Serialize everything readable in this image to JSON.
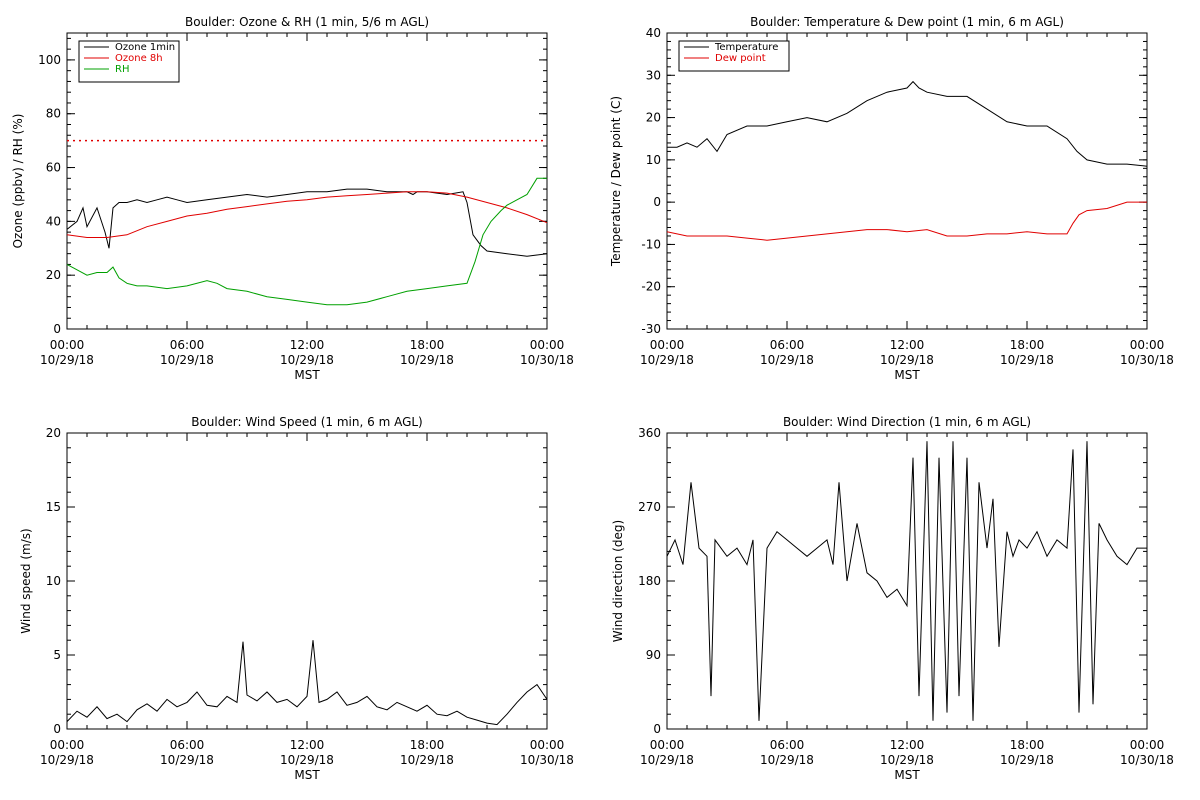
{
  "x_axis": {
    "tick_times": [
      "00:00",
      "06:00",
      "12:00",
      "18:00",
      "00:00"
    ],
    "tick_dates": [
      "10/29/18",
      "10/29/18",
      "10/29/18",
      "10/29/18",
      "10/30/18"
    ],
    "xlabel": "MST",
    "range_hours": [
      0,
      24
    ]
  },
  "chart_data": [
    {
      "type": "line",
      "title": "Boulder: Ozone & RH (1 min, 5/6 m AGL)",
      "xlabel": "MST",
      "ylabel": "Ozone (ppbv) / RH (%)",
      "ylim": [
        0,
        110
      ],
      "yticks": [
        0,
        20,
        40,
        60,
        80,
        100
      ],
      "legend": "top-left",
      "reference_line": {
        "y": 70,
        "color": "#e00000",
        "style": "dotted"
      },
      "series": [
        {
          "name": "Ozone 1min",
          "color": "#000000",
          "x": [
            0,
            0.5,
            0.8,
            1.0,
            1.5,
            1.9,
            2.1,
            2.3,
            2.6,
            3,
            3.5,
            4,
            4.5,
            5,
            5.5,
            6,
            7,
            8,
            9,
            10,
            11,
            12,
            13,
            14,
            15,
            16,
            17,
            17.3,
            17.5,
            18,
            19,
            19.8,
            20.0,
            20.3,
            20.7,
            21,
            22,
            23,
            24
          ],
          "y": [
            37,
            40,
            45,
            38,
            45,
            36,
            30,
            45,
            47,
            47,
            48,
            47,
            48,
            49,
            48,
            47,
            48,
            49,
            50,
            49,
            50,
            51,
            51,
            52,
            52,
            51,
            51,
            50,
            51,
            51,
            50,
            51,
            47,
            35,
            31,
            29,
            28,
            27,
            28
          ]
        },
        {
          "name": "Ozone 8h",
          "color": "#e00000",
          "x": [
            0,
            1,
            2,
            3,
            4,
            5,
            6,
            7,
            8,
            9,
            10,
            11,
            12,
            13,
            14,
            15,
            16,
            17,
            18,
            19,
            20,
            21,
            22,
            23,
            24
          ],
          "y": [
            35,
            34,
            34,
            35,
            38,
            40,
            42,
            43,
            44.5,
            45.5,
            46.5,
            47.5,
            48,
            49,
            49.5,
            50,
            50.5,
            51,
            51,
            50.5,
            49,
            47,
            45,
            42.5,
            39.5
          ]
        },
        {
          "name": "RH",
          "color": "#00a000",
          "x": [
            0,
            0.5,
            1,
            1.5,
            2.0,
            2.3,
            2.6,
            3,
            3.5,
            4,
            5,
            6,
            7,
            7.5,
            8,
            9,
            10,
            11,
            12,
            13,
            14,
            15,
            16,
            17,
            18,
            19,
            20,
            20.4,
            20.8,
            21.2,
            21.7,
            22,
            22.5,
            23,
            23.5,
            24
          ],
          "y": [
            24,
            22,
            20,
            21,
            21,
            23,
            19,
            17,
            16,
            16,
            15,
            16,
            18,
            17,
            15,
            14,
            12,
            11,
            10,
            9,
            9,
            10,
            12,
            14,
            15,
            16,
            17,
            25,
            35,
            40,
            44,
            46,
            48,
            50,
            56,
            56
          ]
        }
      ]
    },
    {
      "type": "line",
      "title": "Boulder: Temperature & Dew point (1 min, 6 m AGL)",
      "xlabel": "MST",
      "ylabel": "Temperature / Dew point (C)",
      "ylim": [
        -30,
        40
      ],
      "yticks": [
        -30,
        -20,
        -10,
        0,
        10,
        20,
        30,
        40
      ],
      "legend": "top-left",
      "series": [
        {
          "name": "Temperature",
          "color": "#000000",
          "x": [
            0,
            0.5,
            1,
            1.5,
            2,
            2.5,
            3,
            4,
            5,
            6,
            7,
            8,
            9,
            10,
            11,
            12,
            12.3,
            12.6,
            13,
            14,
            15,
            16,
            17,
            18,
            19,
            20,
            20.5,
            21,
            22,
            23,
            24
          ],
          "y": [
            13,
            13,
            14,
            13,
            15,
            12,
            16,
            18,
            18,
            19,
            20,
            19,
            21,
            24,
            26,
            27,
            28.5,
            27,
            26,
            25,
            25,
            22,
            19,
            18,
            18,
            15,
            12,
            10,
            9,
            9,
            8.5
          ]
        },
        {
          "name": "Dew point",
          "color": "#e00000",
          "x": [
            0,
            1,
            2,
            3,
            4,
            5,
            6,
            7,
            8,
            9,
            10,
            11,
            12,
            13,
            14,
            15,
            16,
            17,
            18,
            19,
            20,
            20.3,
            20.6,
            21,
            22,
            23,
            24
          ],
          "y": [
            -7,
            -8,
            -8,
            -8,
            -8.5,
            -9,
            -8.5,
            -8,
            -7.5,
            -7,
            -6.5,
            -6.5,
            -7,
            -6.5,
            -8,
            -8,
            -7.5,
            -7.5,
            -7,
            -7.5,
            -7.5,
            -5,
            -3,
            -2,
            -1.5,
            0,
            0
          ]
        }
      ]
    },
    {
      "type": "line",
      "title": "Boulder: Wind Speed (1 min, 6 m AGL)",
      "xlabel": "MST",
      "ylabel": "Wind speed (m/s)",
      "ylim": [
        0,
        20
      ],
      "yticks": [
        0,
        5,
        10,
        15,
        20
      ],
      "series": [
        {
          "color": "#000000",
          "x": [
            0,
            0.5,
            1,
            1.5,
            2,
            2.5,
            3,
            3.5,
            4,
            4.5,
            5,
            5.5,
            6,
            6.5,
            7,
            7.5,
            8,
            8.5,
            8.8,
            9,
            9.5,
            10,
            10.5,
            11,
            11.5,
            12,
            12.3,
            12.6,
            13,
            13.5,
            14,
            14.5,
            15,
            15.5,
            16,
            16.5,
            17,
            17.5,
            18,
            18.5,
            19,
            19.5,
            20,
            20.5,
            21,
            21.5,
            22,
            22.5,
            23,
            23.5,
            24
          ],
          "y": [
            0.5,
            1.2,
            0.8,
            1.5,
            0.7,
            1.0,
            0.5,
            1.3,
            1.7,
            1.2,
            2.0,
            1.5,
            1.8,
            2.5,
            1.6,
            1.5,
            2.2,
            1.8,
            5.9,
            2.3,
            1.9,
            2.5,
            1.8,
            2.0,
            1.5,
            2.2,
            6.0,
            1.8,
            2.0,
            2.5,
            1.6,
            1.8,
            2.2,
            1.5,
            1.3,
            1.8,
            1.5,
            1.2,
            1.6,
            1.0,
            0.9,
            1.2,
            0.8,
            0.6,
            0.4,
            0.3,
            1.0,
            1.8,
            2.5,
            3.0,
            2.0
          ]
        }
      ]
    },
    {
      "type": "line",
      "title": "Boulder: Wind Direction (1 min, 6 m AGL)",
      "xlabel": "MST",
      "ylabel": "Wind direction (deg)",
      "ylim": [
        0,
        360
      ],
      "yticks": [
        0,
        90,
        180,
        270,
        360
      ],
      "series": [
        {
          "color": "#000000",
          "x": [
            0,
            0.4,
            0.8,
            1.0,
            1.2,
            1.6,
            2.0,
            2.2,
            2.4,
            3.0,
            3.5,
            4.0,
            4.3,
            4.6,
            5.0,
            5.5,
            6.0,
            6.5,
            7.0,
            7.5,
            8.0,
            8.3,
            8.6,
            9.0,
            9.5,
            10.0,
            10.5,
            11.0,
            11.5,
            12.0,
            12.3,
            12.6,
            13.0,
            13.3,
            13.6,
            14.0,
            14.3,
            14.6,
            15.0,
            15.3,
            15.6,
            16.0,
            16.3,
            16.6,
            17.0,
            17.3,
            17.6,
            18.0,
            18.5,
            19.0,
            19.5,
            20.0,
            20.3,
            20.6,
            21.0,
            21.3,
            21.6,
            22.0,
            22.5,
            23.0,
            23.5,
            24.0
          ],
          "y": [
            210,
            230,
            200,
            250,
            300,
            220,
            210,
            40,
            230,
            210,
            220,
            200,
            230,
            10,
            220,
            240,
            230,
            220,
            210,
            220,
            230,
            200,
            300,
            180,
            250,
            190,
            180,
            160,
            170,
            150,
            330,
            40,
            350,
            10,
            330,
            20,
            350,
            40,
            330,
            10,
            300,
            220,
            280,
            100,
            240,
            210,
            230,
            220,
            240,
            210,
            230,
            220,
            340,
            20,
            350,
            30,
            250,
            230,
            210,
            200,
            220,
            220
          ]
        }
      ]
    }
  ]
}
